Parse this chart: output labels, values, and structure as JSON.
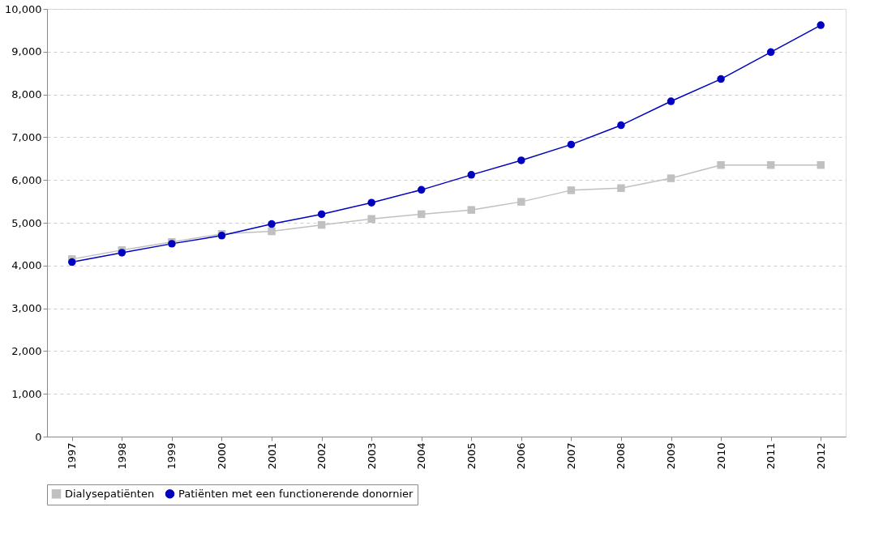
{
  "chart_data": {
    "type": "line",
    "categories": [
      "1997",
      "1998",
      "1999",
      "2000",
      "2001",
      "2002",
      "2003",
      "2004",
      "2005",
      "2006",
      "2007",
      "2008",
      "2009",
      "2010",
      "2011",
      "2012"
    ],
    "series": [
      {
        "name": "Dialysepatiënten",
        "color": "#c0c0c0",
        "marker": "square",
        "values": [
          4150,
          4360,
          4550,
          4740,
          4800,
          4950,
          5090,
          5200,
          5300,
          5490,
          5760,
          5810,
          6040,
          6350,
          6350,
          6350
        ]
      },
      {
        "name": "Patiënten met een functionerende donornier",
        "color": "#0000c0",
        "marker": "circle",
        "values": [
          4080,
          4300,
          4510,
          4700,
          4970,
          5200,
          5470,
          5770,
          6120,
          6460,
          6830,
          7280,
          7840,
          8360,
          8990,
          9620
        ]
      }
    ],
    "ylim": [
      0,
      10000
    ],
    "yticks": [
      0,
      {
        "value": 1000,
        "label": "1,000"
      },
      {
        "value": 2000,
        "label": "2,000"
      },
      {
        "value": 3000,
        "label": "3,000"
      },
      {
        "value": 4000,
        "label": "4,000"
      },
      {
        "value": 5000,
        "label": "5,000"
      },
      {
        "value": 6000,
        "label": "6,000"
      },
      {
        "value": 7000,
        "label": "7,000"
      },
      {
        "value": 8000,
        "label": "8,000"
      },
      {
        "value": 9000,
        "label": "9,000"
      },
      {
        "value": 10000,
        "label": "10,000"
      }
    ],
    "grid": "y",
    "legend": "bottom",
    "line_style": "solid"
  }
}
